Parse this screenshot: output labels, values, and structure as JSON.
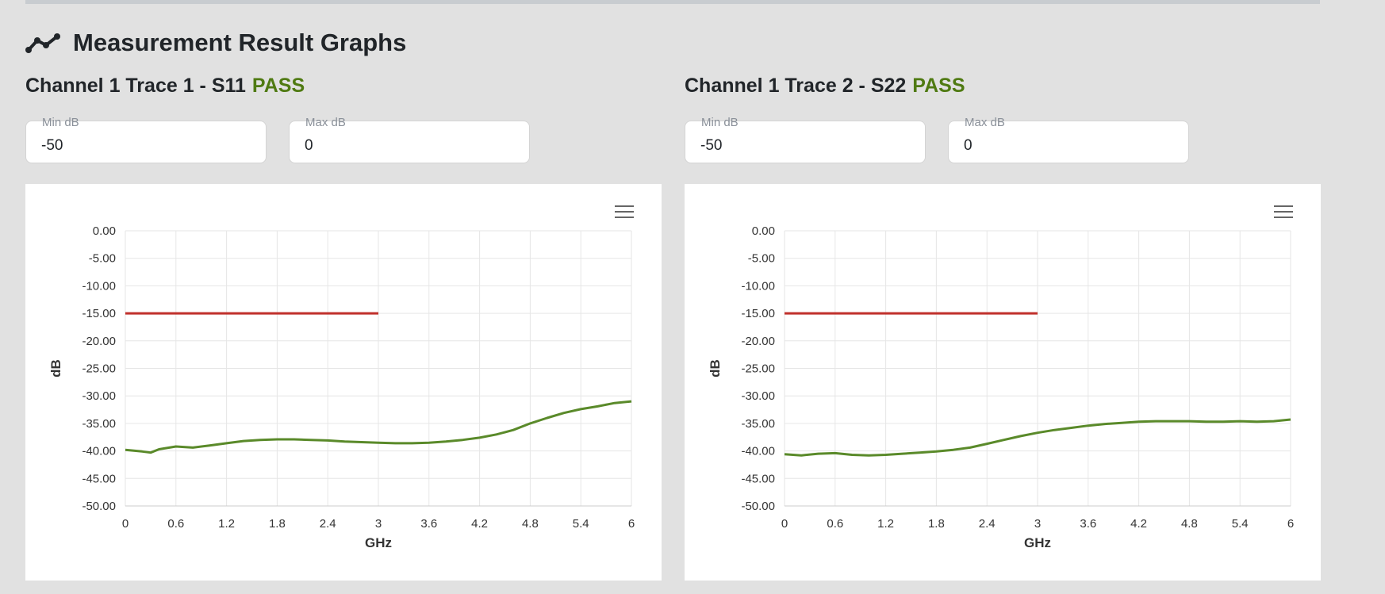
{
  "section": {
    "title": "Measurement Result Graphs",
    "icon": "line-chart-icon"
  },
  "graphs": [
    {
      "title": "Channel 1 Trace 1 - S11",
      "status": "PASS",
      "status_color": "#4f7a12",
      "min_label": "Min dB",
      "min_value": "-50",
      "max_label": "Max dB",
      "max_value": "0",
      "menu_icon": "hamburger-menu-icon"
    },
    {
      "title": "Channel 1 Trace 2 - S22",
      "status": "PASS",
      "status_color": "#4f7a12",
      "min_label": "Min dB",
      "min_value": "-50",
      "max_label": "Max dB",
      "max_value": "0",
      "menu_icon": "hamburger-menu-icon"
    }
  ],
  "chart_data": [
    {
      "type": "line",
      "title": "",
      "xlabel": "GHz",
      "ylabel": "dB",
      "xlim": [
        0,
        6
      ],
      "ylim": [
        -50,
        0
      ],
      "x_ticks": [
        "0",
        "0.6",
        "1.2",
        "1.8",
        "2.4",
        "3",
        "3.6",
        "4.2",
        "4.8",
        "5.4",
        "6"
      ],
      "y_ticks": [
        "0.00",
        "-5.00",
        "-10.00",
        "-15.00",
        "-20.00",
        "-25.00",
        "-30.00",
        "-35.00",
        "-40.00",
        "-45.00",
        "-50.00"
      ],
      "grid": true,
      "limit_line": {
        "x": [
          0,
          3
        ],
        "y": [
          -15,
          -15
        ],
        "color": "#c0302b"
      },
      "series": [
        {
          "color": "#5a8a2a",
          "x": [
            0,
            0.2,
            0.3,
            0.4,
            0.6,
            0.8,
            1.0,
            1.2,
            1.4,
            1.6,
            1.8,
            2.0,
            2.2,
            2.4,
            2.6,
            2.8,
            3.0,
            3.2,
            3.4,
            3.6,
            3.8,
            4.0,
            4.2,
            4.4,
            4.6,
            4.8,
            5.0,
            5.2,
            5.4,
            5.6,
            5.8,
            6.0
          ],
          "y": [
            -39.8,
            -40.1,
            -40.3,
            -39.7,
            -39.2,
            -39.4,
            -39.0,
            -38.6,
            -38.2,
            -38.0,
            -37.9,
            -37.9,
            -38.0,
            -38.1,
            -38.3,
            -38.4,
            -38.5,
            -38.6,
            -38.6,
            -38.5,
            -38.3,
            -38.0,
            -37.6,
            -37.0,
            -36.2,
            -35.0,
            -34.0,
            -33.1,
            -32.4,
            -31.9,
            -31.3,
            -31.0
          ]
        }
      ]
    },
    {
      "type": "line",
      "title": "",
      "xlabel": "GHz",
      "ylabel": "dB",
      "xlim": [
        0,
        6
      ],
      "ylim": [
        -50,
        0
      ],
      "x_ticks": [
        "0",
        "0.6",
        "1.2",
        "1.8",
        "2.4",
        "3",
        "3.6",
        "4.2",
        "4.8",
        "5.4",
        "6"
      ],
      "y_ticks": [
        "0.00",
        "-5.00",
        "-10.00",
        "-15.00",
        "-20.00",
        "-25.00",
        "-30.00",
        "-35.00",
        "-40.00",
        "-45.00",
        "-50.00"
      ],
      "grid": true,
      "limit_line": {
        "x": [
          0,
          3
        ],
        "y": [
          -15,
          -15
        ],
        "color": "#c0302b"
      },
      "series": [
        {
          "color": "#5a8a2a",
          "x": [
            0,
            0.2,
            0.4,
            0.6,
            0.8,
            1.0,
            1.2,
            1.4,
            1.6,
            1.8,
            2.0,
            2.2,
            2.4,
            2.6,
            2.8,
            3.0,
            3.2,
            3.4,
            3.6,
            3.8,
            4.0,
            4.2,
            4.4,
            4.6,
            4.8,
            5.0,
            5.2,
            5.4,
            5.6,
            5.8,
            6.0
          ],
          "y": [
            -40.6,
            -40.8,
            -40.5,
            -40.4,
            -40.7,
            -40.8,
            -40.7,
            -40.5,
            -40.3,
            -40.1,
            -39.8,
            -39.4,
            -38.7,
            -38.0,
            -37.3,
            -36.7,
            -36.2,
            -35.8,
            -35.4,
            -35.1,
            -34.9,
            -34.7,
            -34.6,
            -34.6,
            -34.6,
            -34.7,
            -34.7,
            -34.6,
            -34.7,
            -34.6,
            -34.3
          ]
        }
      ]
    }
  ]
}
